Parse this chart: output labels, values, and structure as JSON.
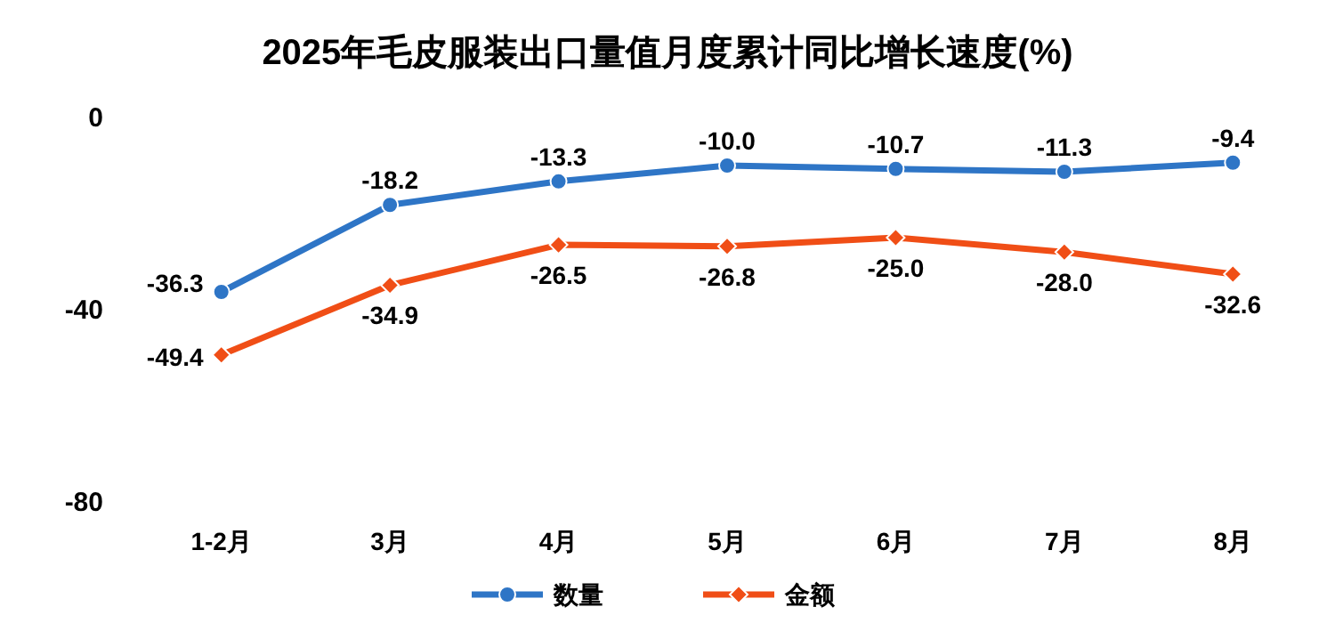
{
  "chart_data": {
    "type": "line",
    "title": "2025年毛皮服装出口量值月度累计同比增长速度(%)",
    "categories": [
      "1-2月",
      "3月",
      "4月",
      "5月",
      "6月",
      "7月",
      "8月"
    ],
    "series": [
      {
        "name": "数量",
        "color": "#2e75c6",
        "marker": "circle",
        "values": [
          -36.3,
          -18.2,
          -13.3,
          -10.0,
          -10.7,
          -11.3,
          -9.4
        ],
        "value_labels": [
          "-36.3",
          "-18.2",
          "-13.3",
          "-10.0",
          "-10.7",
          "-11.3",
          "-9.4"
        ]
      },
      {
        "name": "金额",
        "color": "#f04e16",
        "marker": "diamond",
        "values": [
          -49.4,
          -34.9,
          -26.5,
          -26.8,
          -25.0,
          -28.0,
          -32.6
        ],
        "value_labels": [
          "-49.4",
          "-34.9",
          "-26.5",
          "-26.8",
          "-25.0",
          "-28.0",
          "-32.6"
        ]
      }
    ],
    "ylim": [
      -80,
      0
    ],
    "yticks": [
      0,
      -40,
      -80
    ],
    "legend": "bottom",
    "grid": false
  }
}
